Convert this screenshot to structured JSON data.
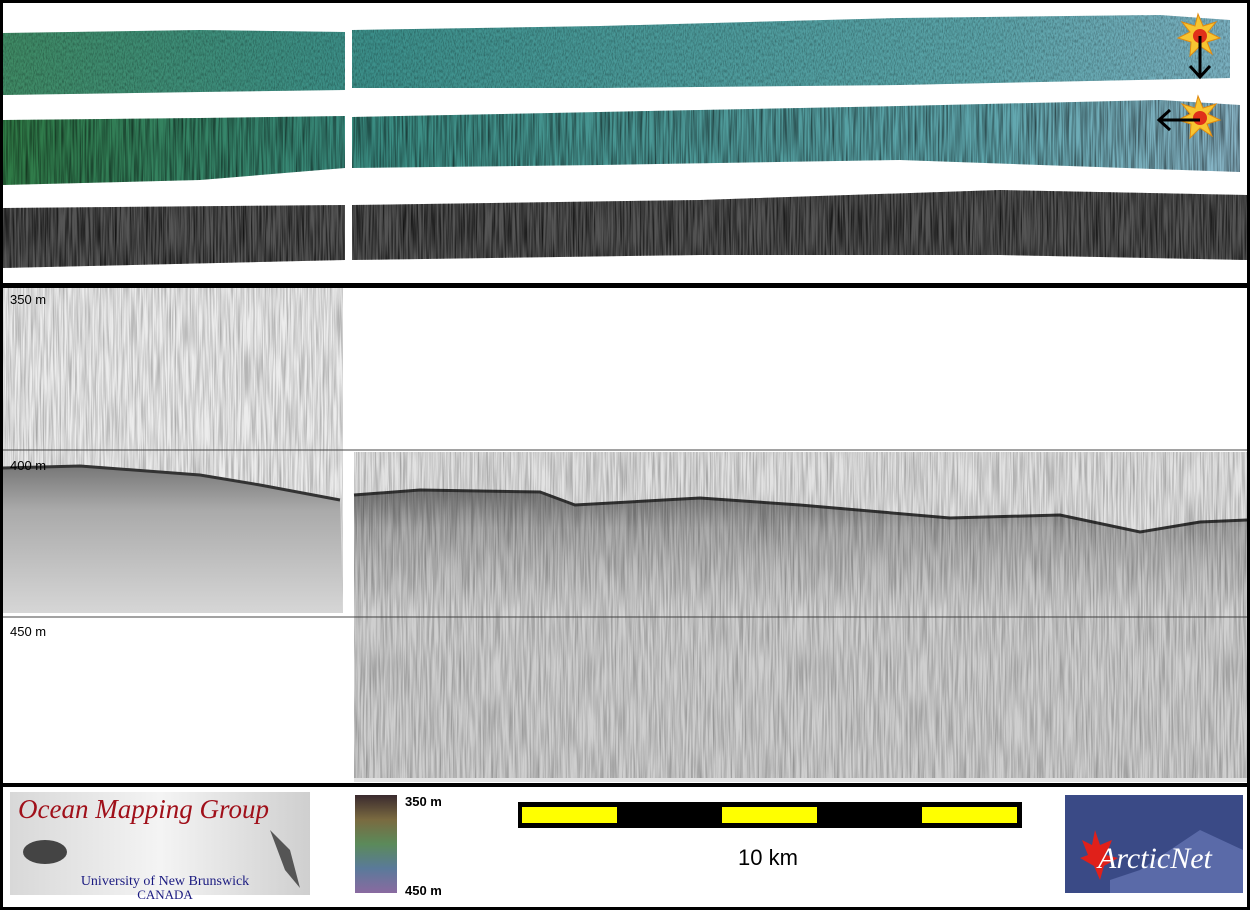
{
  "depth_labels": [
    "350 m",
    "400 m",
    "450 m"
  ],
  "logo_left": {
    "title": "Ocean Mapping Group",
    "line1": "University of New Brunswick",
    "line2": "CANADA"
  },
  "colorbar": {
    "top": "350 m",
    "bottom": "450 m"
  },
  "scale_bar": {
    "label": "10 km"
  },
  "logo_right": {
    "title": "ArcticNet"
  }
}
